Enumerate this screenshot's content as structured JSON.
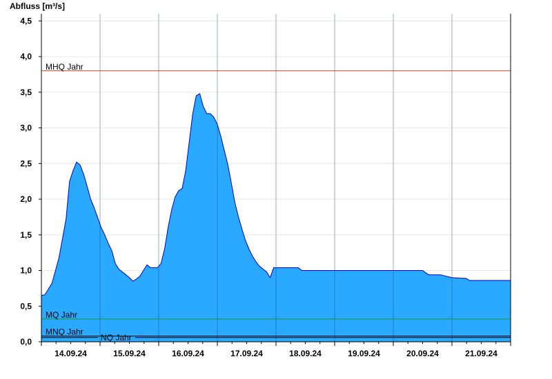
{
  "chart_data": {
    "type": "area",
    "ylabel": "Abfluss [m³/s]",
    "xlabel": "",
    "title": "",
    "ylim": [
      0,
      4.6
    ],
    "yticks": [
      0.0,
      0.5,
      1.0,
      1.5,
      2.0,
      2.5,
      3.0,
      3.5,
      4.0,
      4.5
    ],
    "ytick_labels": [
      "0,0",
      "0,5",
      "1,0",
      "1,5",
      "2,0",
      "2,5",
      "3,0",
      "3,5",
      "4,0",
      "4,5"
    ],
    "xlim_days": [
      0,
      8
    ],
    "day_labels": [
      "14.09.24",
      "15.09.24",
      "16.09.24",
      "17.09.24",
      "18.09.24",
      "19.09.24",
      "20.09.24",
      "21.09.24"
    ],
    "grid": true,
    "colors": {
      "fill": "#29a9ff",
      "line": "#0000c8",
      "mhq": "#c83c28",
      "mq": "#1e9632",
      "mnq": "#000000",
      "nq": "#000000"
    },
    "reference_lines": [
      {
        "label": "MHQ Jahr",
        "value": 3.8
      },
      {
        "label": "MQ Jahr",
        "value": 0.32
      },
      {
        "label": "MNQ Jahr",
        "value": 0.08
      },
      {
        "label": "NQ Jahr",
        "value": 0.06
      }
    ],
    "series": [
      {
        "x": [
          0,
          0.06,
          0.12,
          0.18,
          0.24,
          0.3,
          0.36,
          0.42,
          0.48,
          0.54,
          0.6,
          0.66,
          0.72,
          0.78,
          0.84,
          0.9,
          0.96,
          1.02,
          1.08,
          1.14,
          1.2,
          1.26,
          1.32,
          1.38,
          1.44,
          1.5,
          1.56,
          1.62,
          1.68,
          1.74,
          1.8,
          1.86,
          1.92,
          1.98,
          2.04,
          2.1,
          2.16,
          2.22,
          2.28,
          2.34,
          2.4,
          2.46,
          2.52,
          2.58,
          2.64,
          2.7,
          2.76,
          2.82,
          2.88,
          2.94,
          3.0,
          3.06,
          3.12,
          3.18,
          3.24,
          3.3,
          3.36,
          3.42,
          3.48,
          3.54,
          3.6,
          3.66,
          3.72,
          3.78,
          3.84,
          3.9,
          3.96,
          4.02,
          4.08,
          4.14,
          4.2,
          4.26,
          4.32,
          4.38,
          4.44,
          4.5,
          4.56,
          4.62,
          4.68,
          4.74,
          4.8,
          4.86,
          4.92,
          5.0,
          5.5,
          6.0,
          6.5,
          6.6,
          6.8,
          7.0,
          7.2,
          7.24,
          7.3,
          7.6,
          8.0
        ],
        "y": [
          0.65,
          0.66,
          0.74,
          0.82,
          1.0,
          1.18,
          1.45,
          1.72,
          2.25,
          2.4,
          2.52,
          2.48,
          2.35,
          2.18,
          2.0,
          1.88,
          1.74,
          1.6,
          1.5,
          1.38,
          1.28,
          1.1,
          1.02,
          0.98,
          0.94,
          0.9,
          0.85,
          0.88,
          0.92,
          1.0,
          1.08,
          1.04,
          1.04,
          1.04,
          1.1,
          1.3,
          1.6,
          1.85,
          2.03,
          2.12,
          2.15,
          2.4,
          2.8,
          3.2,
          3.45,
          3.48,
          3.3,
          3.2,
          3.2,
          3.15,
          3.05,
          2.88,
          2.68,
          2.48,
          2.22,
          1.95,
          1.75,
          1.58,
          1.42,
          1.3,
          1.2,
          1.12,
          1.06,
          1.02,
          0.98,
          0.9,
          1.04,
          1.04,
          1.04,
          1.04,
          1.04,
          1.04,
          1.04,
          1.04,
          1.0,
          1.0,
          1.0,
          1.0,
          1.0,
          1.0,
          1.0,
          1.0,
          1.0,
          1.0,
          1.0,
          1.0,
          1.0,
          0.94,
          0.94,
          0.9,
          0.89,
          0.89,
          0.86,
          0.86,
          0.86
        ]
      }
    ]
  }
}
